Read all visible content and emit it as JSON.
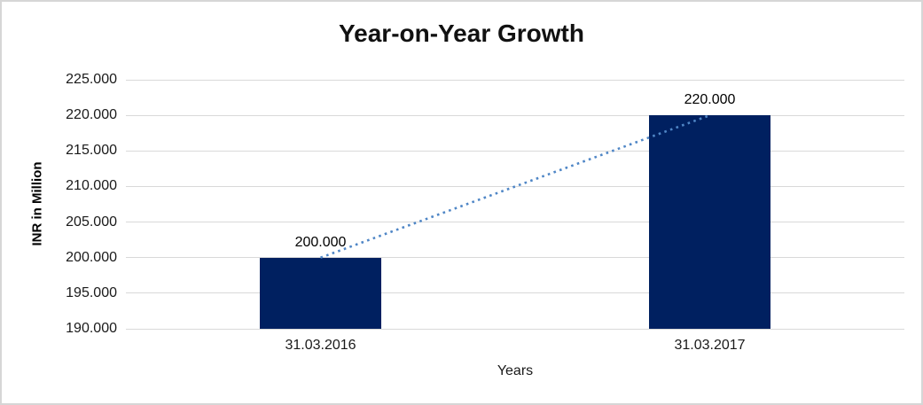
{
  "chart_data": {
    "type": "bar",
    "title": "Year-on-Year Growth",
    "xlabel": "Years",
    "ylabel": "INR in Million",
    "categories": [
      "31.03.2016",
      "31.03.2017"
    ],
    "values": [
      200000,
      220000
    ],
    "value_labels": [
      "200.000",
      "220.000"
    ],
    "ylim": [
      190000,
      225000
    ],
    "y_ticks": [
      {
        "value": 225000,
        "label": "225.000"
      },
      {
        "value": 220000,
        "label": "220.000"
      },
      {
        "value": 215000,
        "label": "215.000"
      },
      {
        "value": 210000,
        "label": "210.000"
      },
      {
        "value": 205000,
        "label": "205.000"
      },
      {
        "value": 200000,
        "label": "200.000"
      },
      {
        "value": 195000,
        "label": "195.000"
      },
      {
        "value": 190000,
        "label": "190.000"
      }
    ],
    "grid": true,
    "legend": "none",
    "trendline": {
      "style": "dotted",
      "connects": "bar-top-centers"
    },
    "colors": {
      "bar": "#002060",
      "trendline": "#4f86c6",
      "gridline": "#d9d9d9",
      "text": "#000000"
    }
  }
}
